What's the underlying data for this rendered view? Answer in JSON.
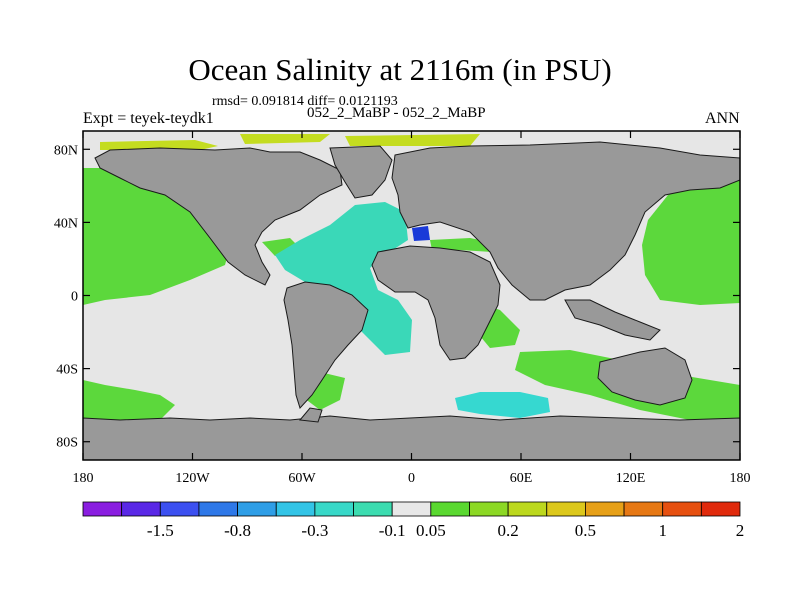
{
  "chart_data": {
    "type": "heatmap",
    "title": "Ocean Salinity at 2116m (in PSU)",
    "stats_line": "rmsd= 0.091814 diff= 0.0121193",
    "subtitle": "052_2_MaBP - 052_2_MaBP",
    "left_label": "Expt = teyek-teydk1",
    "right_label": "ANN",
    "x_axis": {
      "range": [
        -180,
        180
      ],
      "ticks": [
        {
          "value": -180,
          "label": "180"
        },
        {
          "value": -120,
          "label": "120W"
        },
        {
          "value": -60,
          "label": "60W"
        },
        {
          "value": 0,
          "label": "0"
        },
        {
          "value": 60,
          "label": "60E"
        },
        {
          "value": 120,
          "label": "120E"
        },
        {
          "value": 180,
          "label": "180"
        }
      ]
    },
    "y_axis": {
      "range": [
        -90,
        90
      ],
      "ticks": [
        {
          "value": 80,
          "label": "80N"
        },
        {
          "value": 40,
          "label": "40N"
        },
        {
          "value": 0,
          "label": "0"
        },
        {
          "value": -40,
          "label": "40S"
        },
        {
          "value": -80,
          "label": "80S"
        }
      ]
    },
    "colorbar": {
      "colors": [
        "#8a1ee0",
        "#5a28e6",
        "#3c50f0",
        "#2e78e8",
        "#2f9ee6",
        "#33c4e6",
        "#38d8c8",
        "#3cdcb0",
        "#e8e8e8",
        "#5ad830",
        "#8cd824",
        "#bcd81e",
        "#dcc81c",
        "#e6a018",
        "#e67814",
        "#e65010",
        "#e02a0c"
      ],
      "labels": [
        "-1.5",
        "-0.8",
        "-0.3",
        "-0.1",
        "0.05",
        "0.2",
        "0.5",
        "1",
        "2"
      ],
      "label_after_box": [
        1,
        3,
        5,
        7,
        8,
        10,
        12,
        14,
        16
      ]
    },
    "fill_colors": {
      "neutral": "#e6e6e6",
      "land": "#999999",
      "green": "#5cd83c",
      "teal": "#3ad8b8",
      "cyan": "#36d8d0",
      "yellowgreen": "#c4dc20",
      "blue": "#2a6ee0",
      "darkblue": "#1a3ad8"
    }
  }
}
